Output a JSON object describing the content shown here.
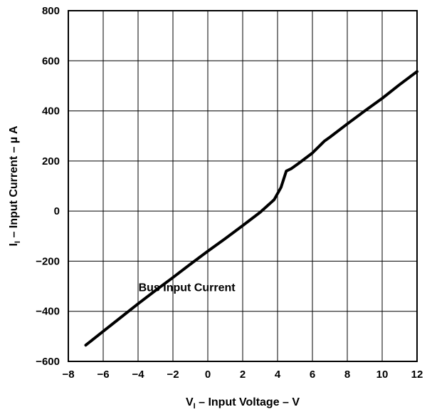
{
  "chart_data": {
    "type": "line",
    "xlabel": {
      "main": "V",
      "sub": "I",
      "rest": " – Input Voltage – V"
    },
    "ylabel": {
      "main": "I",
      "sub": "I",
      "rest": " – Input Current – µ A"
    },
    "xlim": [
      -8,
      12
    ],
    "ylim": [
      -600,
      800
    ],
    "x_ticks": [
      -8,
      -6,
      -4,
      -2,
      0,
      2,
      4,
      6,
      8,
      10,
      12
    ],
    "x_tick_labels": [
      "−8",
      "−6",
      "−4",
      "−2",
      "0",
      "2",
      "4",
      "6",
      "8",
      "10",
      "12"
    ],
    "y_ticks": [
      -600,
      -400,
      -200,
      0,
      200,
      400,
      600,
      800
    ],
    "y_tick_labels": [
      "−600",
      "−400",
      "−200",
      "0",
      "200",
      "400",
      "600",
      "800"
    ],
    "grid": true,
    "annotation": {
      "text": "Bus Input Current",
      "x": -1.2,
      "y": -320
    },
    "series": [
      {
        "x": [
          -7,
          -6,
          -5,
          -4,
          -3,
          -2,
          -1,
          0,
          1,
          2,
          3,
          3.8,
          4.2,
          4.5,
          4.8,
          5.2,
          6,
          6.7,
          7,
          8,
          9,
          10,
          11,
          12
        ],
        "y": [
          -535,
          -480,
          -425,
          -370,
          -317,
          -265,
          -212,
          -160,
          -110,
          -58,
          -5,
          45,
          95,
          160,
          170,
          190,
          232,
          280,
          295,
          348,
          400,
          450,
          505,
          557
        ]
      }
    ]
  }
}
